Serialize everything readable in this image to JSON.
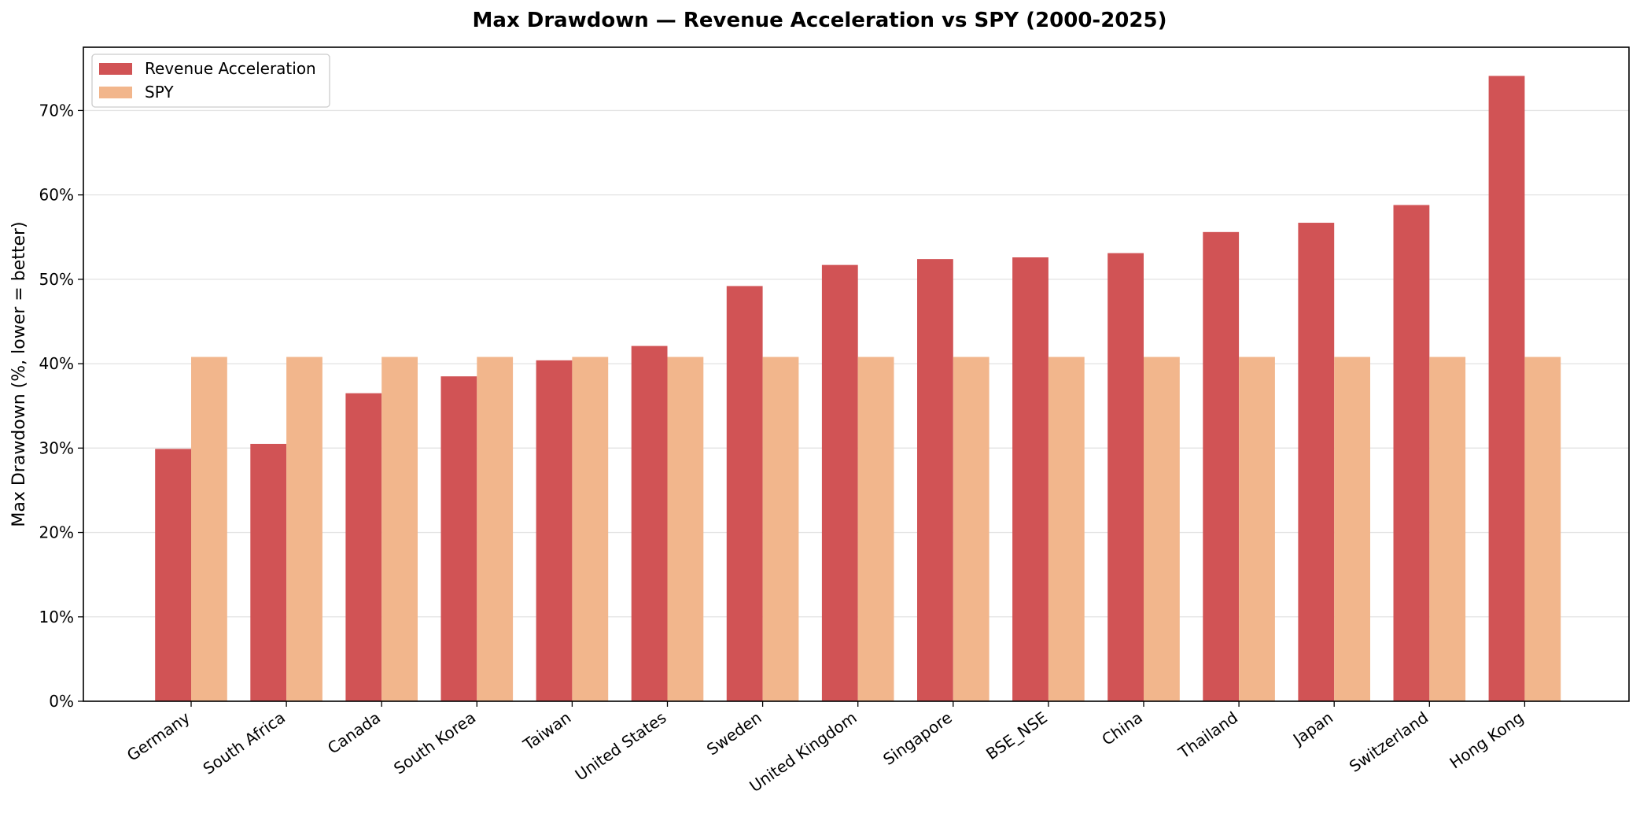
{
  "chart_data": {
    "type": "bar",
    "title": "Max Drawdown — Revenue Acceleration vs SPY (2000-2025)",
    "xlabel": "",
    "ylabel": "Max Drawdown (%, lower = better)",
    "ylim": [
      0,
      77.5
    ],
    "yticks": [
      0,
      10,
      20,
      30,
      40,
      50,
      60,
      70
    ],
    "ytick_labels": [
      "0%",
      "10%",
      "20%",
      "30%",
      "40%",
      "50%",
      "60%",
      "70%"
    ],
    "grid": "y",
    "legend_position": "top-left",
    "categories": [
      "Germany",
      "South Africa",
      "Canada",
      "South Korea",
      "Taiwan",
      "United States",
      "Sweden",
      "United Kingdom",
      "Singapore",
      "BSE_NSE",
      "China",
      "Thailand",
      "Japan",
      "Switzerland",
      "Hong Kong"
    ],
    "series": [
      {
        "name": "Revenue Acceleration",
        "color": "#d15355",
        "values": [
          29.9,
          30.5,
          36.5,
          38.5,
          40.4,
          42.1,
          49.2,
          51.7,
          52.4,
          52.6,
          53.1,
          55.6,
          56.7,
          58.8,
          74.1
        ]
      },
      {
        "name": "SPY",
        "color": "#f2b68c",
        "values": [
          40.8,
          40.8,
          40.8,
          40.8,
          40.8,
          40.8,
          40.8,
          40.8,
          40.8,
          40.8,
          40.8,
          40.8,
          40.8,
          40.8,
          40.8
        ]
      }
    ]
  }
}
